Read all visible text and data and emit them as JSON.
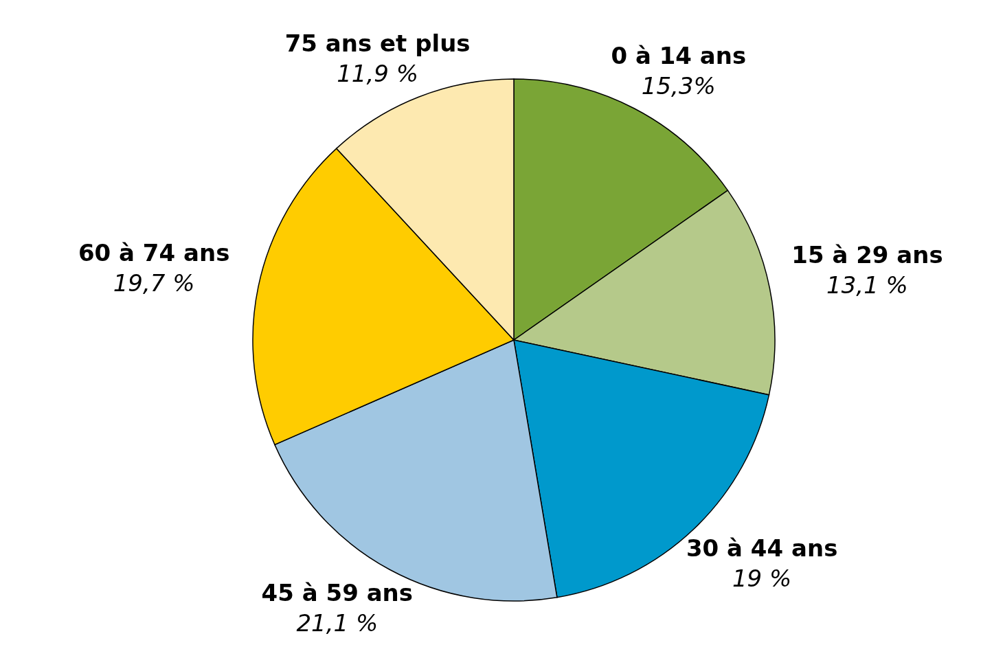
{
  "chart_data": {
    "type": "pie",
    "categories": [
      "0 à 14 ans",
      "15 à 29 ans",
      "30 à 44 ans",
      "45 à 59 ans",
      "60 à 74 ans",
      "75 ans et plus"
    ],
    "values": [
      15.3,
      13.1,
      19,
      21.1,
      19.7,
      11.9
    ],
    "value_labels": [
      "15,3%",
      "13,1 %",
      "19 %",
      "21,1 %",
      "19,7 %",
      "11,9 %"
    ],
    "colors": [
      "#7aa536",
      "#b5c98a",
      "#0099cc",
      "#a0c6e2",
      "#ffcc00",
      "#fde9b0"
    ]
  }
}
